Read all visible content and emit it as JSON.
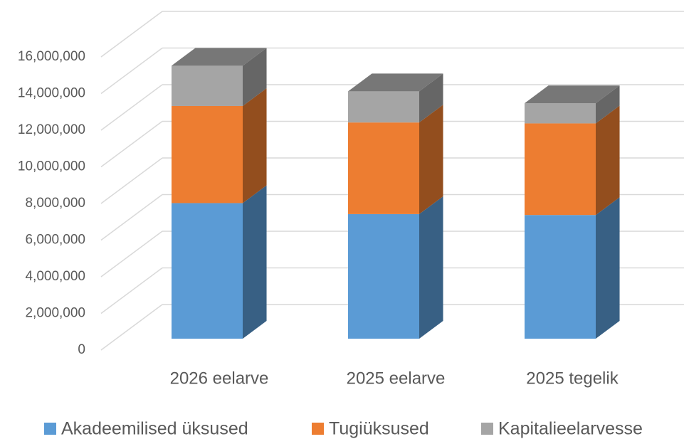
{
  "chart_data": {
    "type": "bar3d_stacked",
    "categories": [
      "2026 eelarve",
      "2025 eelarve",
      "2025 tegelik"
    ],
    "series": [
      {
        "name": "Akadeemilised üksused",
        "color": "#5b9bd5",
        "values": [
          7400000,
          6800000,
          6750000
        ]
      },
      {
        "name": "Tugiüksused",
        "color": "#ed7d31",
        "values": [
          5300000,
          5000000,
          5000000
        ]
      },
      {
        "name": "Kapitalieelarvesse",
        "color": "#a5a5a5",
        "values": [
          2200000,
          1700000,
          1100000
        ]
      }
    ],
    "ylim": [
      0,
      18000000
    ],
    "yticks": [
      0,
      {
        "value": 2000000,
        "label": "2,000,000"
      },
      {
        "value": 4000000,
        "label": "4,000,000"
      },
      {
        "value": 6000000,
        "label": "6,000,000"
      },
      {
        "value": 8000000,
        "label": "8,000,000"
      },
      {
        "value": 10000000,
        "label": "10,000,000"
      },
      {
        "value": 12000000,
        "label": "12,000,000"
      },
      {
        "value": 14000000,
        "label": "14,000,000"
      },
      {
        "value": 16000000,
        "label": "16,000,000"
      }
    ],
    "grid": true,
    "legend": "bottom"
  }
}
